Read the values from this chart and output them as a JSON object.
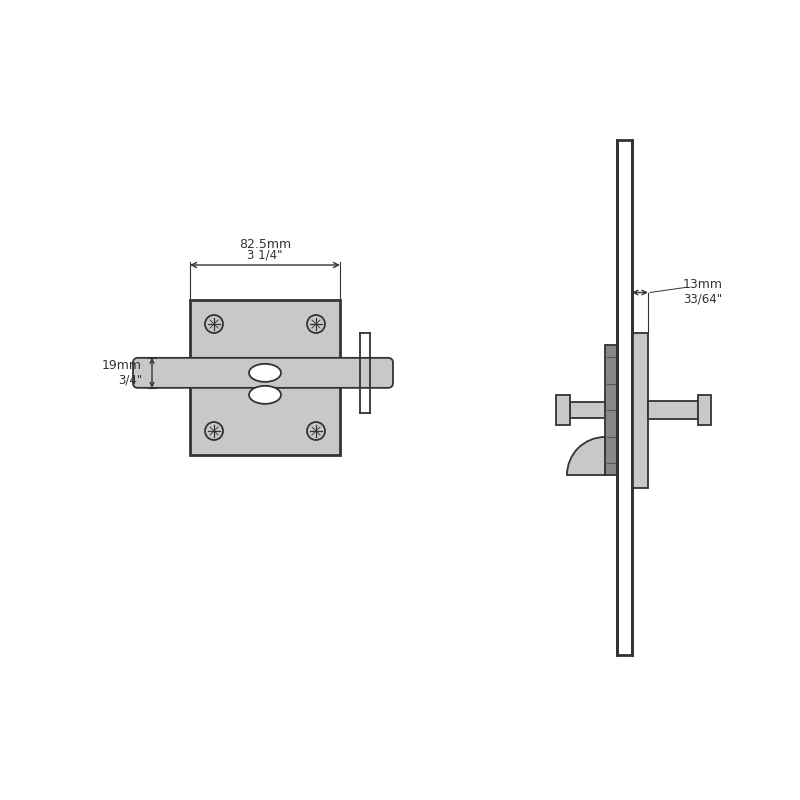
{
  "bg_color": "#ffffff",
  "line_color": "#444444",
  "fill_color": "#c8c8c8",
  "dark_line": "#333333",
  "dim_width_mm": "82.5mm",
  "dim_width_in": "3 1/4\"",
  "dim_height_mm": "19mm",
  "dim_height_in": "3/4\"",
  "dim_depth_mm": "13mm",
  "dim_depth_in": "33/64\""
}
